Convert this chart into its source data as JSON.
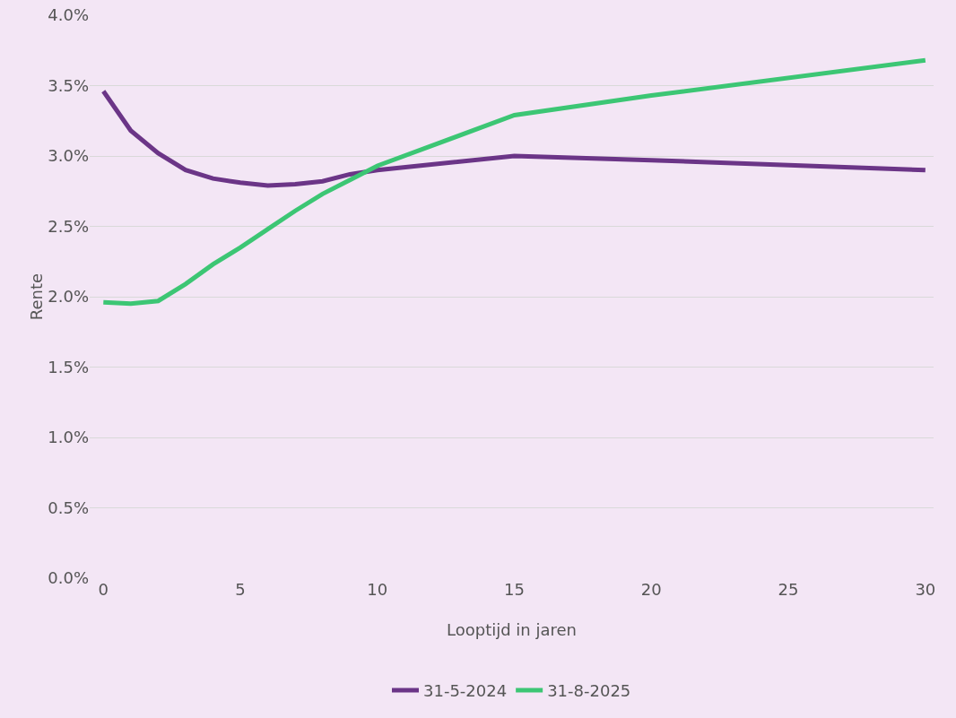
{
  "chart_data": {
    "type": "line",
    "xlabel": "Looptijd in jaren",
    "ylabel": "Rente",
    "x": [
      0,
      1,
      2,
      3,
      4,
      5,
      6,
      7,
      8,
      9,
      10,
      15,
      20,
      30
    ],
    "series": [
      {
        "name": "31-5-2024",
        "color": "#6b3587",
        "values": [
          3.46,
          3.18,
          3.02,
          2.9,
          2.84,
          2.81,
          2.79,
          2.8,
          2.82,
          2.87,
          2.9,
          3.0,
          2.97,
          2.9
        ]
      },
      {
        "name": "31-8-2025",
        "color": "#3cc674",
        "values": [
          1.96,
          1.95,
          1.97,
          2.09,
          2.23,
          2.35,
          2.48,
          2.61,
          2.73,
          2.83,
          2.93,
          3.29,
          3.43,
          3.68
        ]
      }
    ],
    "xlim": [
      -0.5,
      30.3
    ],
    "xticks": [
      0,
      5,
      10,
      15,
      20,
      25,
      30
    ],
    "ylim": [
      0,
      4
    ],
    "yticks": [
      {
        "value": 0,
        "label": "0.0%"
      },
      {
        "value": 0.5,
        "label": "0.5%"
      },
      {
        "value": 1,
        "label": "1.0%"
      },
      {
        "value": 1.5,
        "label": "1.5%"
      },
      {
        "value": 2,
        "label": "2.0%"
      },
      {
        "value": 2.5,
        "label": "2.5%"
      },
      {
        "value": 3,
        "label": "3.0%"
      },
      {
        "value": 3.5,
        "label": "3.5%"
      },
      {
        "value": 4,
        "label": "4.0%"
      }
    ],
    "grid": "y",
    "legend": "bottom",
    "marker": "none",
    "line_style": "solid"
  }
}
